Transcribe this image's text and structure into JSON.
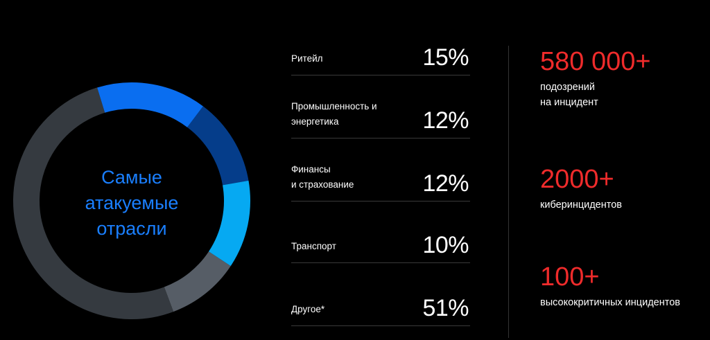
{
  "chart_data": {
    "type": "pie",
    "donut": true,
    "title": [
      "Самые",
      "атакуемые",
      "отрасли"
    ],
    "categories": [
      "Ритейл",
      "Промышленность и энергетика",
      "Финансы и страхование",
      "Транспорт",
      "Другое*"
    ],
    "values": [
      15,
      12,
      12,
      10,
      51
    ],
    "value_labels": [
      "15%",
      "12%",
      "12%",
      "10%",
      "51%"
    ],
    "colors": [
      "#0a6ef0",
      "#053d8a",
      "#06a9f2",
      "#565d66",
      "#353a40"
    ]
  },
  "legend": [
    {
      "label_lines": [
        "Ритейл"
      ],
      "value": "15%"
    },
    {
      "label_lines": [
        "Промышленность и",
        "энергетика"
      ],
      "value": "12%"
    },
    {
      "label_lines": [
        "Финансы",
        "и страхование"
      ],
      "value": "12%"
    },
    {
      "label_lines": [
        "Транспорт"
      ],
      "value": "10%"
    },
    {
      "label_lines": [
        "Другое*"
      ],
      "value": "51%"
    }
  ],
  "stats": [
    {
      "value": "580 000+",
      "desc_lines": [
        "подозрений",
        "на инцидент"
      ]
    },
    {
      "value": "2000+",
      "desc_lines": [
        "киберинцидентов"
      ]
    },
    {
      "value": "100+",
      "desc_lines": [
        "высококритичных инцидентов"
      ]
    }
  ],
  "colors": {
    "accent_red": "#ef2b2b",
    "title_blue": "#1a7fff",
    "background": "#000000"
  }
}
